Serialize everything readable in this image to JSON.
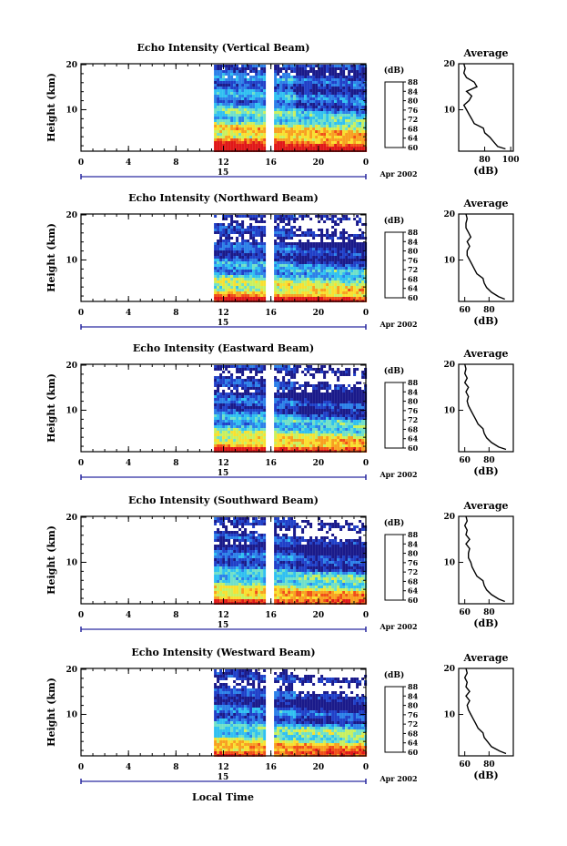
{
  "figure": {
    "xlabel": "Local Time",
    "date_label": "Apr 2002",
    "day_label": "15"
  },
  "chart_data": [
    {
      "type": "heatmap",
      "title": "Echo Intensity (Vertical Beam)",
      "ylabel": "Height (km)",
      "x_ticks": [
        "0",
        "4",
        "8",
        "12",
        "16",
        "20",
        "0"
      ],
      "y_ticks": [
        "20",
        "10"
      ],
      "colorbar_unit": "(dB)",
      "colorbar_ticks": [
        "88",
        "84",
        "80",
        "76",
        "72",
        "68",
        "64",
        "60"
      ],
      "colorbar_range": [
        60,
        88
      ],
      "data_start_hour": 11.2,
      "data_gap_hours": [
        15.7,
        16.2
      ],
      "ylim": [
        1,
        20
      ],
      "profile": {
        "title": "Average",
        "xlabel": "(dB)",
        "x_ticks": [
          "80",
          "100"
        ],
        "x_tick_values": [
          80,
          100
        ],
        "xlim": [
          60,
          102
        ],
        "y_ticks": [
          "20",
          "10"
        ],
        "heights": [
          1.5,
          2,
          3,
          4,
          5,
          6,
          7,
          8,
          9,
          10,
          11,
          12,
          13,
          14,
          15,
          16,
          17,
          18,
          19,
          20
        ],
        "values": [
          96,
          90,
          87,
          84,
          80,
          79,
          72,
          70,
          68,
          66,
          64,
          68,
          70,
          66,
          74,
          72,
          66,
          64,
          65,
          64
        ]
      }
    },
    {
      "type": "heatmap",
      "title": "Echo Intensity (Northward Beam)",
      "ylabel": "Height (km)",
      "x_ticks": [
        "0",
        "4",
        "8",
        "12",
        "16",
        "20",
        "0"
      ],
      "y_ticks": [
        "20",
        "10"
      ],
      "colorbar_unit": "(dB)",
      "colorbar_ticks": [
        "88",
        "84",
        "80",
        "76",
        "72",
        "68",
        "64",
        "60"
      ],
      "colorbar_range": [
        60,
        88
      ],
      "data_start_hour": 11.2,
      "data_gap_hours": [
        15.7,
        16.2
      ],
      "ylim": [
        1,
        20
      ],
      "profile": {
        "title": "Average",
        "xlabel": "(dB)",
        "x_ticks": [
          "60",
          "80"
        ],
        "x_tick_values": [
          60,
          80
        ],
        "xlim": [
          55,
          100
        ],
        "y_ticks": [
          "20",
          "10"
        ],
        "heights": [
          1.5,
          2,
          3,
          4,
          5,
          6,
          7,
          8,
          9,
          10,
          11,
          12,
          13,
          14,
          15,
          16,
          17,
          18,
          19,
          20
        ],
        "values": [
          93,
          88,
          82,
          78,
          76,
          75,
          70,
          68,
          66,
          64,
          62,
          62,
          64,
          62,
          65,
          63,
          61,
          61,
          62,
          61
        ]
      }
    },
    {
      "type": "heatmap",
      "title": "Echo Intensity (Eastward Beam)",
      "ylabel": "Height (km)",
      "x_ticks": [
        "0",
        "4",
        "8",
        "12",
        "16",
        "20",
        "0"
      ],
      "y_ticks": [
        "20",
        "10"
      ],
      "colorbar_unit": "(dB)",
      "colorbar_ticks": [
        "88",
        "84",
        "80",
        "76",
        "72",
        "68",
        "64",
        "60"
      ],
      "colorbar_range": [
        60,
        88
      ],
      "data_start_hour": 11.2,
      "data_gap_hours": [
        15.7,
        16.2
      ],
      "ylim": [
        1,
        20
      ],
      "profile": {
        "title": "Average",
        "xlabel": "(dB)",
        "x_ticks": [
          "60",
          "80"
        ],
        "x_tick_values": [
          60,
          80
        ],
        "xlim": [
          55,
          100
        ],
        "y_ticks": [
          "20",
          "10"
        ],
        "heights": [
          1.5,
          2,
          3,
          4,
          5,
          6,
          7,
          8,
          9,
          10,
          11,
          12,
          13,
          14,
          15,
          16,
          17,
          18,
          19,
          20
        ],
        "values": [
          94,
          88,
          82,
          78,
          76,
          75,
          71,
          69,
          67,
          65,
          63,
          62,
          63,
          61,
          63,
          60,
          62,
          60,
          61,
          60
        ]
      }
    },
    {
      "type": "heatmap",
      "title": "Echo Intensity (Southward Beam)",
      "ylabel": "Height (km)",
      "x_ticks": [
        "0",
        "4",
        "8",
        "12",
        "16",
        "20",
        "0"
      ],
      "y_ticks": [
        "20",
        "10"
      ],
      "colorbar_unit": "(dB)",
      "colorbar_ticks": [
        "88",
        "84",
        "80",
        "76",
        "72",
        "68",
        "64",
        "60"
      ],
      "colorbar_range": [
        60,
        88
      ],
      "data_start_hour": 11.2,
      "data_gap_hours": [
        15.7,
        16.2
      ],
      "ylim": [
        1,
        20
      ],
      "profile": {
        "title": "Average",
        "xlabel": "(dB)",
        "x_ticks": [
          "60",
          "80"
        ],
        "x_tick_values": [
          60,
          80
        ],
        "xlim": [
          55,
          100
        ],
        "y_ticks": [
          "20",
          "10"
        ],
        "heights": [
          1.5,
          2,
          3,
          4,
          5,
          6,
          7,
          8,
          9,
          10,
          11,
          12,
          13,
          14,
          15,
          16,
          17,
          18,
          19,
          20
        ],
        "values": [
          93,
          88,
          82,
          78,
          76,
          75,
          70,
          68,
          66,
          65,
          63,
          63,
          64,
          61,
          64,
          61,
          62,
          60,
          62,
          61
        ]
      }
    },
    {
      "type": "heatmap",
      "title": "Echo Intensity (Westward Beam)",
      "ylabel": "Height (km)",
      "x_ticks": [
        "0",
        "4",
        "8",
        "12",
        "16",
        "20",
        "0"
      ],
      "y_ticks": [
        "20",
        "10"
      ],
      "colorbar_unit": "(dB)",
      "colorbar_ticks": [
        "88",
        "84",
        "80",
        "76",
        "72",
        "68",
        "64",
        "60"
      ],
      "colorbar_range": [
        60,
        88
      ],
      "data_start_hour": 11.2,
      "data_gap_hours": [
        15.7,
        16.2
      ],
      "ylim": [
        1,
        20
      ],
      "profile": {
        "title": "Average",
        "xlabel": "(dB)",
        "x_ticks": [
          "60",
          "80"
        ],
        "x_tick_values": [
          60,
          80
        ],
        "xlim": [
          55,
          100
        ],
        "y_ticks": [
          "20",
          "10"
        ],
        "heights": [
          1.5,
          2,
          3,
          4,
          5,
          6,
          7,
          8,
          9,
          10,
          11,
          12,
          13,
          14,
          15,
          16,
          17,
          18,
          19,
          20
        ],
        "values": [
          94,
          89,
          82,
          79,
          76,
          75,
          71,
          69,
          67,
          65,
          63,
          62,
          64,
          61,
          64,
          61,
          62,
          60,
          62,
          61
        ]
      }
    }
  ],
  "colors": {
    "colormap": [
      "#1a1a8a",
      "#2040c8",
      "#2c80e8",
      "#30c0f0",
      "#70e0c8",
      "#c8f060",
      "#f8e030",
      "#f8a020",
      "#f05018",
      "#e01818"
    ],
    "axis": "#000000",
    "timeline": "#2a2aa0",
    "background": "#ffffff"
  }
}
